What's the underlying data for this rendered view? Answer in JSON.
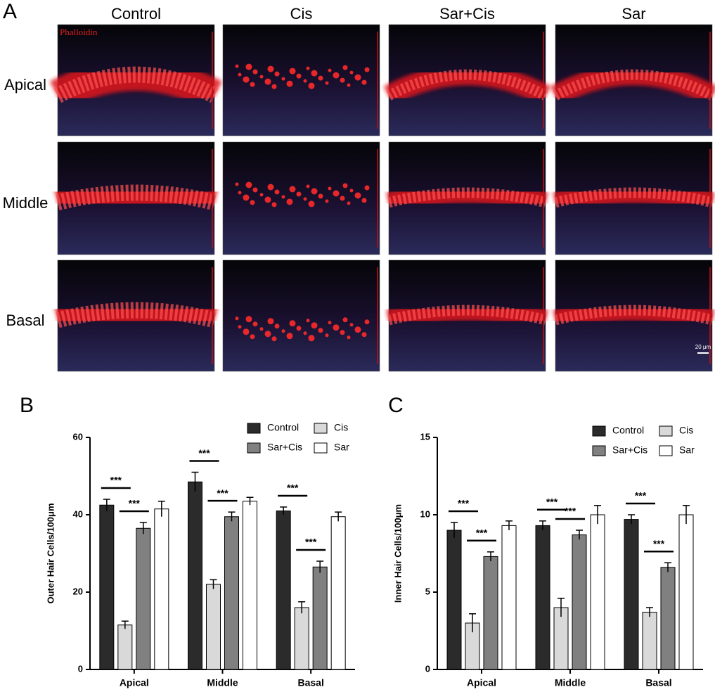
{
  "panel_a": {
    "label": "A",
    "columns": [
      "Control",
      "Cis",
      "Sar+Cis",
      "Sar"
    ],
    "rows": [
      "Apical",
      "Middle",
      "Basal"
    ],
    "stain_label": "Phalloidin",
    "scale_bar": "20 μm"
  },
  "chart_data": [
    {
      "type": "bar",
      "panel_label": "B",
      "y_label": "Outer Hair Cells/100μm",
      "categories": [
        "Apical",
        "Middle",
        "Basal"
      ],
      "series": [
        {
          "name": "Control",
          "color": "#2b2b2b",
          "values": [
            42.5,
            48.5,
            41
          ],
          "errors": [
            1.5,
            2.5,
            1
          ]
        },
        {
          "name": "Cis",
          "color": "#d9d9d9",
          "values": [
            11.5,
            22,
            16
          ],
          "errors": [
            1,
            1.2,
            1.5
          ]
        },
        {
          "name": "Sar+Cis",
          "color": "#808080",
          "values": [
            36.5,
            39.5,
            26.5
          ],
          "errors": [
            1.5,
            1.2,
            1.5
          ]
        },
        {
          "name": "Sar",
          "color": "#ffffff",
          "values": [
            41.5,
            43.5,
            39.5
          ],
          "errors": [
            2,
            1,
            1.2
          ]
        }
      ],
      "ylim": [
        0,
        60
      ],
      "yticks": [
        0,
        20,
        40,
        60
      ],
      "significance_label": "***",
      "legend": "top-right"
    },
    {
      "type": "bar",
      "panel_label": "C",
      "y_label": "Inner Hair Cells/100μm",
      "categories": [
        "Apical",
        "Middle",
        "Basal"
      ],
      "series": [
        {
          "name": "Control",
          "color": "#2b2b2b",
          "values": [
            9,
            9.3,
            9.7
          ],
          "errors": [
            0.5,
            0.3,
            0.3
          ]
        },
        {
          "name": "Cis",
          "color": "#d9d9d9",
          "values": [
            3,
            4,
            3.7
          ],
          "errors": [
            0.6,
            0.6,
            0.3
          ]
        },
        {
          "name": "Sar+Cis",
          "color": "#808080",
          "values": [
            7.3,
            8.7,
            6.6
          ],
          "errors": [
            0.3,
            0.3,
            0.3
          ]
        },
        {
          "name": "Sar",
          "color": "#ffffff",
          "values": [
            9.3,
            10,
            10
          ],
          "errors": [
            0.3,
            0.6,
            0.6
          ]
        }
      ],
      "ylim": [
        0,
        15
      ],
      "yticks": [
        0,
        5,
        10,
        15
      ],
      "significance_label": "***",
      "legend": "top-right"
    }
  ]
}
